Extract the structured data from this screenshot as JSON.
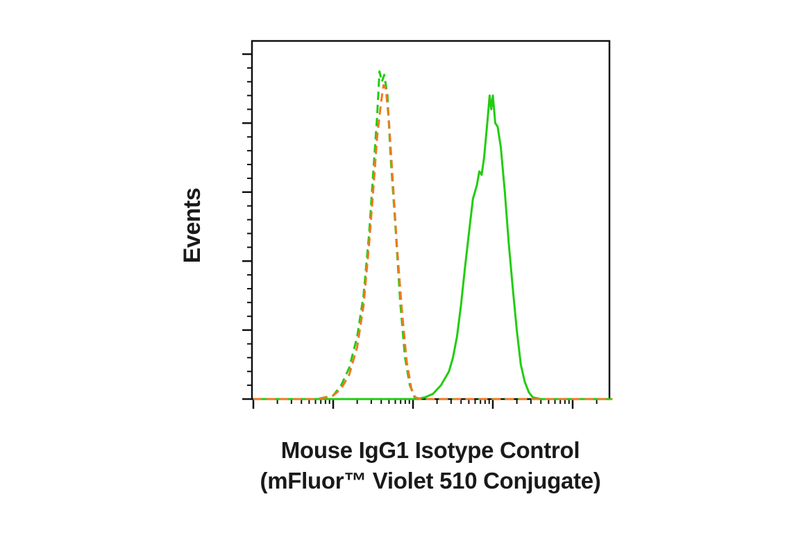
{
  "chart_data": {
    "type": "line",
    "title": "",
    "xlabel_line1": "Mouse IgG1 Isotype Control",
    "xlabel_line2": "(mFluor™ Violet 510 Conjugate)",
    "ylabel": "Events",
    "xscale": "log",
    "x_decades": 5,
    "ylim": [
      0,
      100
    ],
    "grid": false,
    "tick_labels_shown": false,
    "series": [
      {
        "color": "#22cc11",
        "style": "solid",
        "points": [
          [
            0,
            0
          ],
          [
            1.0,
            0
          ],
          [
            1.8,
            0
          ],
          [
            2.05,
            0
          ],
          [
            2.15,
            0.5
          ],
          [
            2.25,
            1.5
          ],
          [
            2.35,
            4
          ],
          [
            2.45,
            8
          ],
          [
            2.5,
            12
          ],
          [
            2.55,
            18
          ],
          [
            2.6,
            27
          ],
          [
            2.65,
            38
          ],
          [
            2.7,
            48
          ],
          [
            2.75,
            58
          ],
          [
            2.8,
            62
          ],
          [
            2.83,
            66
          ],
          [
            2.86,
            65
          ],
          [
            2.89,
            70
          ],
          [
            2.93,
            80
          ],
          [
            2.96,
            88
          ],
          [
            2.98,
            84
          ],
          [
            3.0,
            88
          ],
          [
            3.03,
            80
          ],
          [
            3.06,
            79
          ],
          [
            3.1,
            73
          ],
          [
            3.15,
            60
          ],
          [
            3.2,
            45
          ],
          [
            3.25,
            32
          ],
          [
            3.3,
            20
          ],
          [
            3.35,
            10
          ],
          [
            3.4,
            5
          ],
          [
            3.45,
            2
          ],
          [
            3.5,
            0.5
          ],
          [
            3.6,
            0
          ],
          [
            4.5,
            0
          ]
        ]
      },
      {
        "color": "#22cc11",
        "style": "dashed",
        "points": [
          [
            0,
            0
          ],
          [
            0.8,
            0
          ],
          [
            0.9,
            0.5
          ],
          [
            1.0,
            1
          ],
          [
            1.1,
            4
          ],
          [
            1.2,
            9
          ],
          [
            1.3,
            18
          ],
          [
            1.38,
            30
          ],
          [
            1.45,
            48
          ],
          [
            1.5,
            65
          ],
          [
            1.55,
            82
          ],
          [
            1.58,
            95
          ],
          [
            1.61,
            92
          ],
          [
            1.64,
            94
          ],
          [
            1.68,
            88
          ],
          [
            1.72,
            70
          ],
          [
            1.78,
            50
          ],
          [
            1.84,
            28
          ],
          [
            1.9,
            12
          ],
          [
            1.96,
            4
          ],
          [
            2.02,
            0.5
          ],
          [
            2.1,
            0
          ],
          [
            4.5,
            0
          ]
        ]
      },
      {
        "color": "#ee7a22",
        "style": "dashed",
        "points": [
          [
            0,
            0
          ],
          [
            0.8,
            0
          ],
          [
            0.9,
            0.5
          ],
          [
            1.0,
            1
          ],
          [
            1.1,
            3
          ],
          [
            1.2,
            7
          ],
          [
            1.3,
            15
          ],
          [
            1.38,
            27
          ],
          [
            1.45,
            45
          ],
          [
            1.5,
            60
          ],
          [
            1.55,
            76
          ],
          [
            1.6,
            86
          ],
          [
            1.63,
            91
          ],
          [
            1.66,
            90
          ],
          [
            1.7,
            80
          ],
          [
            1.75,
            62
          ],
          [
            1.8,
            44
          ],
          [
            1.86,
            26
          ],
          [
            1.92,
            11
          ],
          [
            1.98,
            3
          ],
          [
            2.03,
            0.5
          ],
          [
            2.1,
            0
          ],
          [
            4.5,
            0
          ]
        ]
      }
    ]
  }
}
